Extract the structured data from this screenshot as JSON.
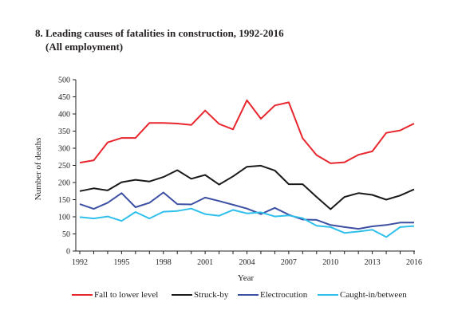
{
  "title_line1": "8. Leading causes of fatalities in construction, 1992-2016",
  "title_line2": "(All employment)",
  "chart_data": {
    "type": "line",
    "title": "8. Leading causes of fatalities in construction, 1992-2016",
    "subtitle": "(All employment)",
    "xlabel": "Year",
    "ylabel": "Number of deaths",
    "ylim": [
      0,
      500
    ],
    "yticks": [
      0,
      50,
      100,
      150,
      200,
      250,
      300,
      350,
      400,
      450,
      500
    ],
    "xticks": [
      1992,
      1995,
      1998,
      2001,
      2004,
      2007,
      2010,
      2013,
      2016
    ],
    "x": [
      1992,
      1993,
      1994,
      1995,
      1996,
      1997,
      1998,
      1999,
      2000,
      2001,
      2002,
      2003,
      2004,
      2005,
      2006,
      2007,
      2008,
      2009,
      2010,
      2011,
      2012,
      2013,
      2014,
      2015,
      2016
    ],
    "grid": false,
    "legend_position": "bottom",
    "series": [
      {
        "name": "Fall to lower level",
        "color": "#e8262d",
        "values": [
          258,
          265,
          317,
          330,
          330,
          374,
          374,
          372,
          368,
          410,
          371,
          355,
          440,
          386,
          425,
          434,
          329,
          280,
          256,
          259,
          281,
          291,
          345,
          352,
          372
        ]
      },
      {
        "name": "Struck-by",
        "color": "#1a1a1a",
        "values": [
          175,
          183,
          177,
          201,
          208,
          203,
          216,
          236,
          211,
          222,
          194,
          218,
          246,
          249,
          235,
          195,
          195,
          158,
          122,
          158,
          169,
          164,
          150,
          162,
          180
        ]
      },
      {
        "name": "Electrocution",
        "color": "#3b4fa3",
        "values": [
          137,
          123,
          141,
          169,
          128,
          141,
          171,
          137,
          136,
          156,
          146,
          135,
          124,
          108,
          126,
          106,
          92,
          91,
          76,
          70,
          65,
          72,
          76,
          83,
          83
        ]
      },
      {
        "name": "Caught-in/between",
        "color": "#2ec0ea",
        "values": [
          99,
          95,
          101,
          88,
          114,
          95,
          115,
          117,
          124,
          108,
          103,
          120,
          110,
          113,
          101,
          104,
          96,
          74,
          70,
          53,
          57,
          62,
          41,
          70,
          73
        ]
      }
    ]
  }
}
